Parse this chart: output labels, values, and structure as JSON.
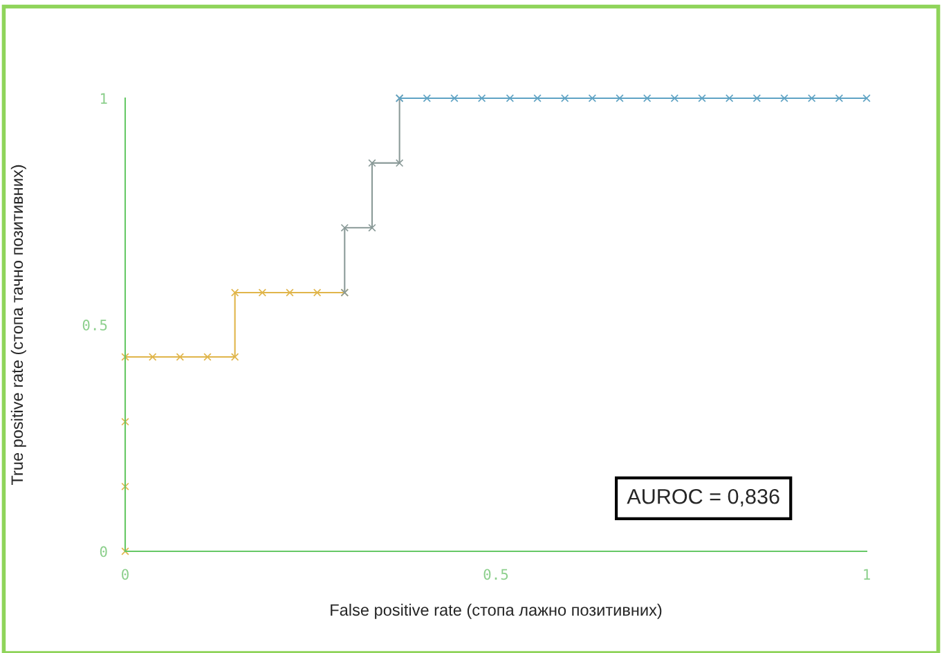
{
  "chart_data": {
    "type": "line",
    "xlabel": "False positive rate (стопа лажно позитивних)",
    "ylabel": "True positive rate (стопа тачно позитивних)",
    "marker": "cross",
    "line_style": "solid",
    "grid": false,
    "legend": false,
    "xlim": [
      0,
      1
    ],
    "ylim": [
      0,
      1
    ],
    "xticks": [
      0,
      0.5,
      1
    ],
    "yticks": [
      0,
      0.5,
      1
    ],
    "series": [
      {
        "color": "#e0b54a",
        "x": [
          0,
          0,
          0,
          0,
          0.037,
          0.074,
          0.111,
          0.148,
          0.148,
          0.185,
          0.222,
          0.259,
          0.296
        ],
        "values": [
          0,
          0.143,
          0.286,
          0.429,
          0.429,
          0.429,
          0.429,
          0.429,
          0.571,
          0.571,
          0.571,
          0.571,
          0.571
        ]
      },
      {
        "color": "#8a9a98",
        "x": [
          0.296,
          0.296,
          0.333,
          0.333,
          0.37,
          0.37
        ],
        "values": [
          0.571,
          0.714,
          0.714,
          0.857,
          0.857,
          1
        ]
      },
      {
        "color": "#5fa3c4",
        "x": [
          0.37,
          0.407,
          0.444,
          0.481,
          0.519,
          0.556,
          0.593,
          0.63,
          0.667,
          0.704,
          0.741,
          0.778,
          0.815,
          0.852,
          0.889,
          0.926,
          0.963,
          1.0
        ],
        "values": [
          1,
          1,
          1,
          1,
          1,
          1,
          1,
          1,
          1,
          1,
          1,
          1,
          1,
          1,
          1,
          1,
          1,
          1
        ]
      }
    ],
    "annotations": [
      "AUROC = 0,836"
    ]
  }
}
